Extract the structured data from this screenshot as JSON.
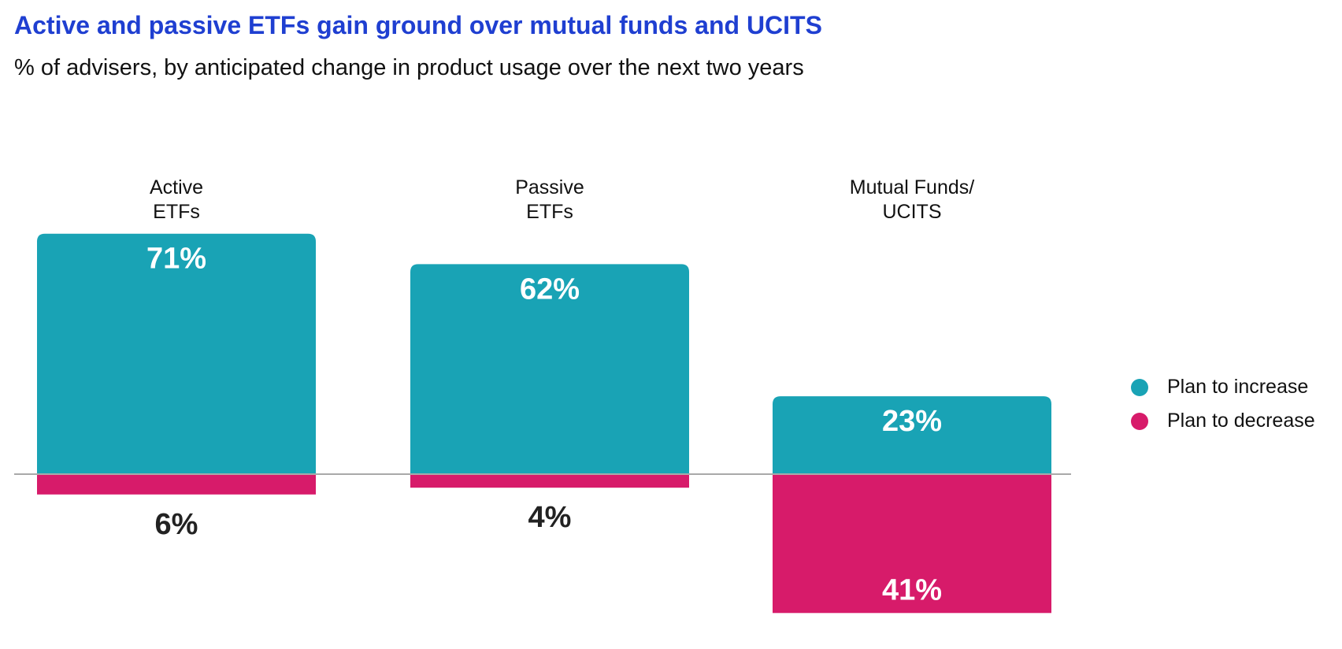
{
  "chart_data": {
    "type": "bar",
    "title": "Active and passive ETFs gain ground over mutual funds and UCITS",
    "subtitle": "% of advisers, by anticipated change in product usage over the next two years",
    "categories": [
      [
        "Active",
        "ETFs"
      ],
      [
        "Passive",
        "ETFs"
      ],
      [
        "Mutual Funds/",
        "UCITS"
      ]
    ],
    "series": [
      {
        "name": "Plan to increase",
        "color": "#19a3b5",
        "values": [
          71,
          62,
          23
        ],
        "labels": [
          "71%",
          "62%",
          "23%"
        ]
      },
      {
        "name": "Plan to decrease",
        "color": "#d71b6a",
        "values": [
          -6,
          -4,
          -41
        ],
        "labels": [
          "6%",
          "4%",
          "41%"
        ]
      }
    ],
    "ylim": [
      -41,
      71
    ],
    "xlabel": "",
    "ylabel": "",
    "grid": false,
    "legend": "right"
  }
}
